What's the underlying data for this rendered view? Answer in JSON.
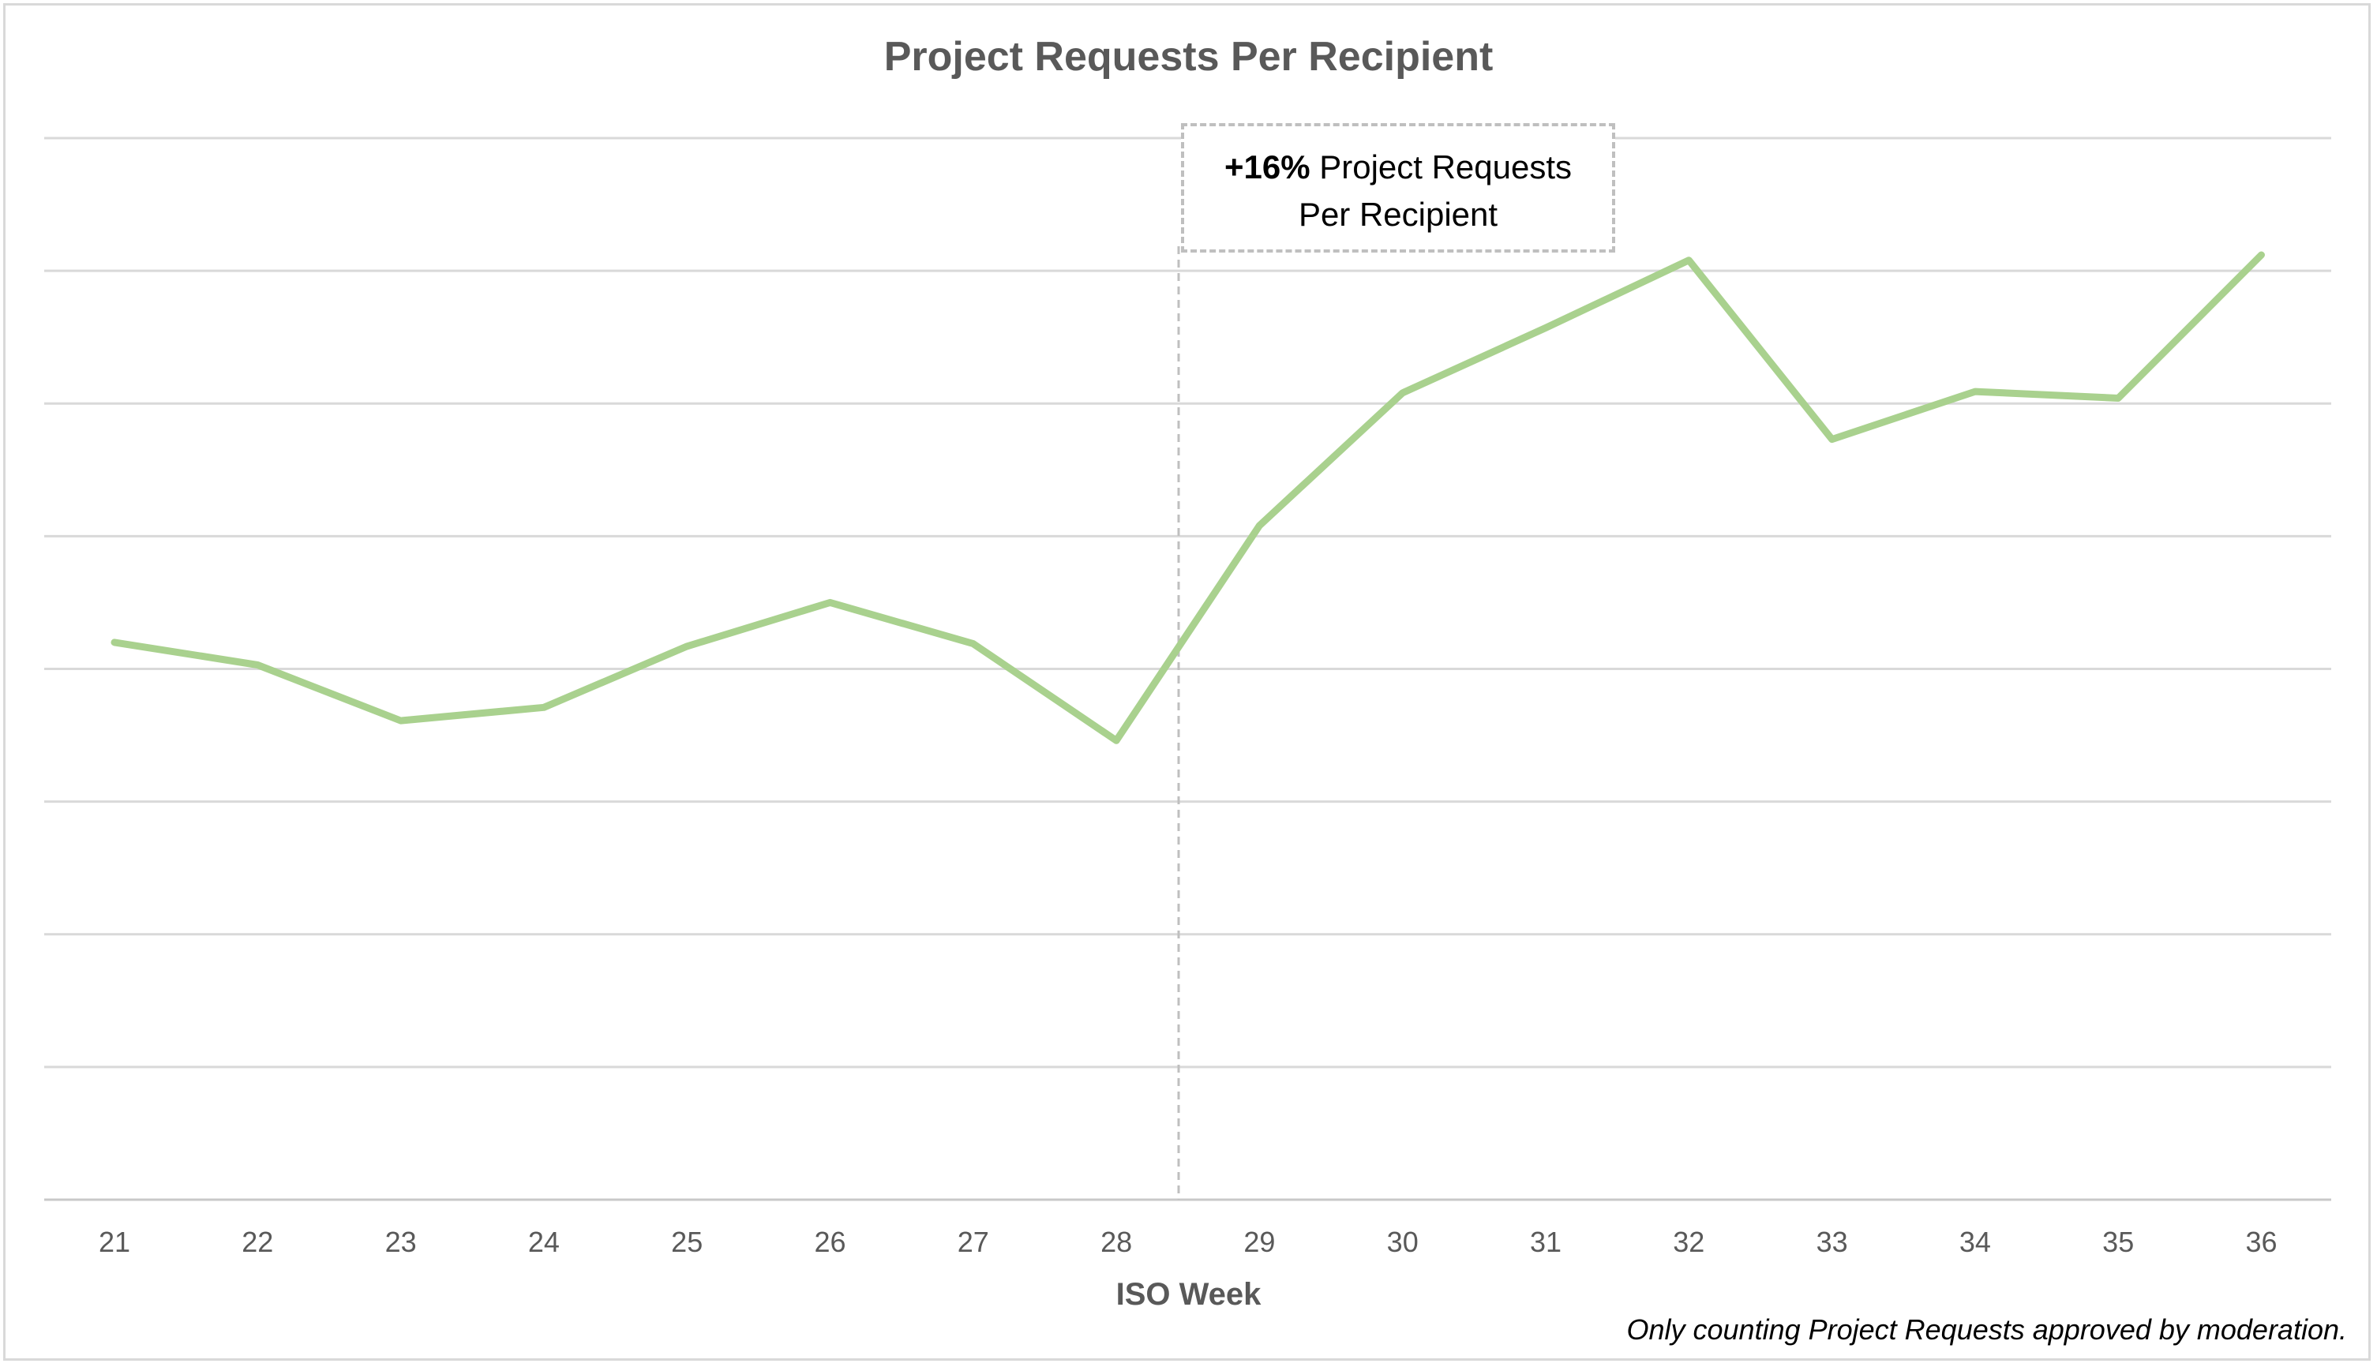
{
  "chart_data": {
    "type": "line",
    "title": "Project Requests Per Recipient",
    "xlabel": "ISO Week",
    "ylabel": "",
    "categories": [
      "21",
      "22",
      "23",
      "24",
      "25",
      "26",
      "27",
      "28",
      "29",
      "30",
      "31",
      "32",
      "33",
      "34",
      "35",
      "36"
    ],
    "series": [
      {
        "values": [
          42.0,
          40.3,
          36.1,
          37.1,
          41.7,
          45.0,
          41.9,
          34.6,
          50.8,
          60.8,
          65.7,
          70.8,
          57.3,
          60.9,
          60.4,
          71.2
        ]
      }
    ],
    "ylim": [
      0,
      80
    ],
    "y_gridlines": [
      0,
      10,
      20,
      30,
      40,
      50,
      60,
      70,
      80
    ],
    "y_tick_labels_shown": false,
    "grid": true,
    "line_color": "#a9d18e",
    "annotation": {
      "bold": "+16%",
      "text_line1": " Project Requests",
      "text_line2": "Per Recipient",
      "position_between": [
        "28",
        "29"
      ]
    },
    "note": "Only counting Project Requests approved by moderation."
  }
}
